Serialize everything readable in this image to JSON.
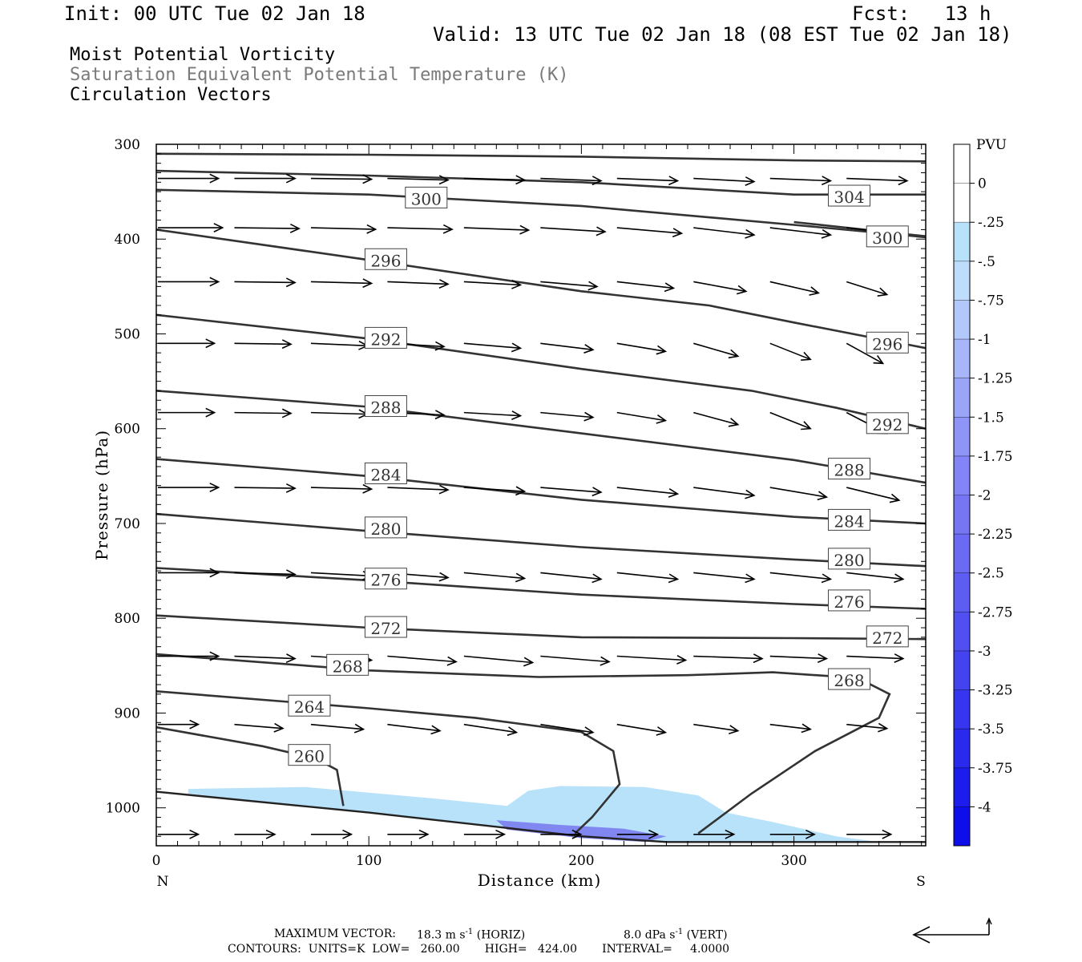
{
  "header": {
    "init": "Init: 00 UTC Tue 02 Jan 18",
    "fcst": "Fcst:   13 h",
    "valid": "Valid: 13 UTC Tue 02 Jan 18 (08 EST Tue 02 Jan 18)",
    "fields": [
      "Moist Potential Vorticity",
      "Saturation Equivalent Potential Temperature (K)",
      "Circulation Vectors"
    ]
  },
  "footer": {
    "max_vector_label": "MAXIMUM VECTOR:",
    "max_horiz": "18.3 m s",
    "horiz_tag": "(HORIZ)",
    "max_vert": "8.0 dPa s",
    "vert_tag": "(VERT)",
    "contours_line": "CONTOURS:  UNITS=K  LOW=   260.00       HIGH=   424.00       INTERVAL=     4.0000"
  },
  "colors": {
    "contour": "#333333",
    "mpv_light": "#b8e2fa",
    "mpv_dark": "#3333ee"
  },
  "chart_data": {
    "type": "cross-section",
    "xlabel": "Distance (km)",
    "ylabel": "Pressure (hPa)",
    "xlim": [
      0,
      362
    ],
    "ylim": [
      1040,
      300
    ],
    "x_ticks": [
      0,
      100,
      200,
      300
    ],
    "y_ticks": [
      300,
      400,
      500,
      600,
      700,
      800,
      900,
      1000
    ],
    "x_end_labels": [
      "N",
      "S"
    ],
    "colorbar": {
      "title": "PVU",
      "labels": [
        "0",
        "-.25",
        "-.5",
        "-.75",
        "-1",
        "-1.25",
        "-1.5",
        "-1.75",
        "-2",
        "-2.25",
        "-2.5",
        "-2.75",
        "-3",
        "-3.25",
        "-3.5",
        "-3.75",
        "-4"
      ],
      "colors": [
        "#ffffff",
        "#ffffff",
        "#b8e2fa",
        "#bedcfb",
        "#b3c8fa",
        "#a7b5f9",
        "#9ba5f8",
        "#8f94f7",
        "#8384f6",
        "#7676f4",
        "#6a6af3",
        "#5d5df2",
        "#5050f0",
        "#4343ef",
        "#3636ee",
        "#2a2aed",
        "#1c1cec",
        "#0e0eeb"
      ]
    },
    "surface": [
      [
        0,
        983
      ],
      [
        100,
        1005
      ],
      [
        200,
        1030
      ],
      [
        240,
        1036
      ],
      [
        362,
        1036
      ]
    ],
    "theta_e_contours": [
      {
        "level": 304,
        "points": [
          [
            0,
            310
          ],
          [
            100,
            311
          ],
          [
            200,
            313
          ],
          [
            300,
            317
          ],
          [
            362,
            318
          ]
        ]
      },
      {
        "level": 304,
        "points": [
          [
            0,
            328
          ],
          [
            100,
            333
          ],
          [
            200,
            340
          ],
          [
            300,
            353
          ],
          [
            362,
            353
          ]
        ],
        "label_at": [
          326,
          355
        ]
      },
      {
        "level": 300,
        "points": [
          [
            0,
            348
          ],
          [
            100,
            353
          ],
          [
            200,
            365
          ],
          [
            300,
            385
          ],
          [
            362,
            398
          ]
        ],
        "label_at": [
          127,
          357
        ]
      },
      {
        "level": 300,
        "points": [
          [
            300,
            382
          ],
          [
            362,
            397
          ]
        ],
        "label_at": [
          344,
          398
        ]
      },
      {
        "level": 296,
        "points": [
          [
            0,
            390
          ],
          [
            100,
            422
          ],
          [
            200,
            455
          ],
          [
            260,
            470
          ],
          [
            300,
            488
          ],
          [
            362,
            515
          ]
        ],
        "label_at": [
          108,
          422
        ],
        "label2_at": [
          344,
          510
        ]
      },
      {
        "level": 292,
        "points": [
          [
            0,
            480
          ],
          [
            100,
            505
          ],
          [
            200,
            537
          ],
          [
            280,
            560
          ],
          [
            320,
            578
          ],
          [
            362,
            600
          ]
        ],
        "label_at": [
          108,
          505
        ],
        "label2_at": [
          344,
          595
        ]
      },
      {
        "level": 288,
        "points": [
          [
            0,
            560
          ],
          [
            100,
            577
          ],
          [
            200,
            605
          ],
          [
            300,
            633
          ],
          [
            362,
            657
          ]
        ],
        "label_at": [
          108,
          577
        ],
        "label2_at": [
          326,
          643
        ]
      },
      {
        "level": 284,
        "points": [
          [
            0,
            632
          ],
          [
            100,
            650
          ],
          [
            200,
            675
          ],
          [
            300,
            693
          ],
          [
            362,
            700
          ]
        ],
        "label_at": [
          108,
          648
        ],
        "label2_at": [
          326,
          697
        ]
      },
      {
        "level": 280,
        "points": [
          [
            0,
            690
          ],
          [
            100,
            708
          ],
          [
            200,
            725
          ],
          [
            300,
            738
          ],
          [
            362,
            745
          ]
        ],
        "label_at": [
          108,
          705
        ],
        "label2_at": [
          326,
          738
        ]
      },
      {
        "level": 276,
        "points": [
          [
            0,
            747
          ],
          [
            100,
            760
          ],
          [
            200,
            775
          ],
          [
            300,
            785
          ],
          [
            362,
            790
          ]
        ],
        "label_at": [
          108,
          759
        ],
        "label2_at": [
          326,
          782
        ]
      },
      {
        "level": 272,
        "points": [
          [
            0,
            797
          ],
          [
            100,
            810
          ],
          [
            200,
            820
          ],
          [
            300,
            821
          ],
          [
            362,
            822
          ]
        ],
        "label_at": [
          108,
          810
        ],
        "label2_at": [
          344,
          820
        ]
      },
      {
        "level": 268,
        "points": [
          [
            0,
            838
          ],
          [
            100,
            855
          ],
          [
            180,
            862
          ],
          [
            250,
            860
          ],
          [
            290,
            857
          ],
          [
            330,
            863
          ],
          [
            345,
            880
          ],
          [
            340,
            905
          ],
          [
            310,
            940
          ],
          [
            280,
            985
          ],
          [
            255,
            1027
          ]
        ],
        "label_at": [
          90,
          850
        ],
        "label2_at": [
          326,
          865
        ]
      },
      {
        "level": 264,
        "points": [
          [
            0,
            877
          ],
          [
            100,
            895
          ],
          [
            150,
            905
          ],
          [
            200,
            920
          ],
          [
            215,
            940
          ],
          [
            218,
            975
          ],
          [
            205,
            1010
          ],
          [
            197,
            1027
          ]
        ],
        "label_at": [
          72,
          893
        ]
      },
      {
        "level": 260,
        "points": [
          [
            0,
            915
          ],
          [
            50,
            935
          ],
          [
            75,
            948
          ],
          [
            85,
            960
          ],
          [
            87,
            985
          ],
          [
            88,
            998
          ]
        ],
        "label_at": [
          72,
          945
        ]
      }
    ],
    "mpv_region_light": [
      [
        15,
        980
      ],
      [
        70,
        978
      ],
      [
        130,
        990
      ],
      [
        165,
        998
      ],
      [
        175,
        982
      ],
      [
        190,
        977
      ],
      [
        230,
        978
      ],
      [
        255,
        987
      ],
      [
        268,
        1005
      ],
      [
        290,
        1015
      ],
      [
        320,
        1030
      ],
      [
        340,
        1036
      ],
      [
        240,
        1036
      ],
      [
        200,
        1030
      ],
      [
        100,
        1005
      ],
      [
        15,
        985
      ]
    ],
    "mpv_region_dark": [
      [
        160,
        1013
      ],
      [
        190,
        1018
      ],
      [
        220,
        1022
      ],
      [
        240,
        1030
      ],
      [
        230,
        1036
      ],
      [
        200,
        1032
      ],
      [
        165,
        1023
      ]
    ],
    "vectors": [
      {
        "p": 336,
        "xs": [
          0,
          36,
          72,
          108,
          144,
          180,
          216,
          252,
          288,
          324
        ],
        "dx": [
          30,
          30,
          30,
          30,
          30,
          30,
          30,
          30,
          30,
          30
        ],
        "dp": [
          0,
          0,
          1,
          2,
          2,
          3,
          3,
          4,
          3,
          3
        ]
      },
      {
        "p": 388,
        "xs": [
          0,
          36,
          72,
          108,
          144,
          180,
          216,
          252,
          288,
          324
        ],
        "dx": [
          32,
          32,
          32,
          32,
          32,
          32,
          32,
          30,
          30,
          30
        ],
        "dp": [
          0,
          1,
          2,
          2,
          3,
          5,
          7,
          9,
          9,
          9
        ]
      },
      {
        "p": 445,
        "xs": [
          0,
          36,
          72,
          108,
          144,
          180,
          216,
          252,
          288,
          324
        ],
        "dx": [
          30,
          30,
          30,
          30,
          28,
          28,
          28,
          26,
          24,
          20
        ],
        "dp": [
          0,
          1,
          2,
          3,
          4,
          6,
          8,
          12,
          14,
          16
        ]
      },
      {
        "p": 510,
        "xs": [
          0,
          36,
          72,
          108,
          144,
          180,
          216,
          252,
          288,
          324
        ],
        "dx": [
          28,
          28,
          28,
          28,
          28,
          26,
          24,
          22,
          20,
          18
        ],
        "dp": [
          0,
          1,
          3,
          4,
          6,
          8,
          10,
          16,
          20,
          25
        ]
      },
      {
        "p": 583,
        "xs": [
          0,
          36,
          72,
          108,
          144,
          180,
          216,
          252,
          288,
          324
        ],
        "dx": [
          28,
          28,
          28,
          28,
          28,
          26,
          24,
          22,
          20,
          20
        ],
        "dp": [
          0,
          1,
          2,
          3,
          4,
          6,
          10,
          15,
          20,
          26
        ]
      },
      {
        "p": 662,
        "xs": [
          0,
          36,
          72,
          108,
          144,
          180,
          216,
          252,
          288,
          324
        ],
        "dx": [
          30,
          30,
          30,
          30,
          30,
          30,
          30,
          30,
          28,
          26
        ],
        "dp": [
          0,
          1,
          2,
          3,
          5,
          6,
          8,
          10,
          12,
          16
        ]
      },
      {
        "p": 752,
        "xs": [
          0,
          36,
          72,
          108,
          144,
          180,
          216,
          252,
          288,
          324
        ],
        "dx": [
          30,
          30,
          30,
          30,
          30,
          30,
          30,
          30,
          30,
          28
        ],
        "dp": [
          0,
          2,
          4,
          6,
          7,
          8,
          8,
          8,
          8,
          8
        ]
      },
      {
        "p": 840,
        "xs": [
          0,
          36,
          72,
          108,
          144,
          180,
          216,
          252,
          288,
          324
        ],
        "dx": [
          30,
          30,
          30,
          34,
          34,
          34,
          34,
          34,
          28,
          28
        ],
        "dp": [
          0,
          3,
          5,
          7,
          8,
          7,
          5,
          3,
          3,
          3
        ]
      },
      {
        "p": 912,
        "xs": [
          0,
          36,
          72,
          108,
          144,
          180,
          216,
          252,
          288,
          324
        ],
        "dx": [
          20,
          24,
          26,
          26,
          26,
          26,
          24,
          22,
          20,
          20
        ],
        "dp": [
          0,
          5,
          6,
          8,
          10,
          10,
          10,
          8,
          6,
          5
        ]
      },
      {
        "p": 1028,
        "xs": [
          0,
          36,
          72,
          108,
          144,
          180,
          216,
          252,
          288,
          324
        ],
        "dx": [
          20,
          20,
          20,
          20,
          20,
          20,
          20,
          20,
          22,
          22
        ],
        "dp": [
          0,
          0,
          0,
          0,
          0,
          0,
          0,
          0,
          0,
          0
        ]
      }
    ]
  }
}
